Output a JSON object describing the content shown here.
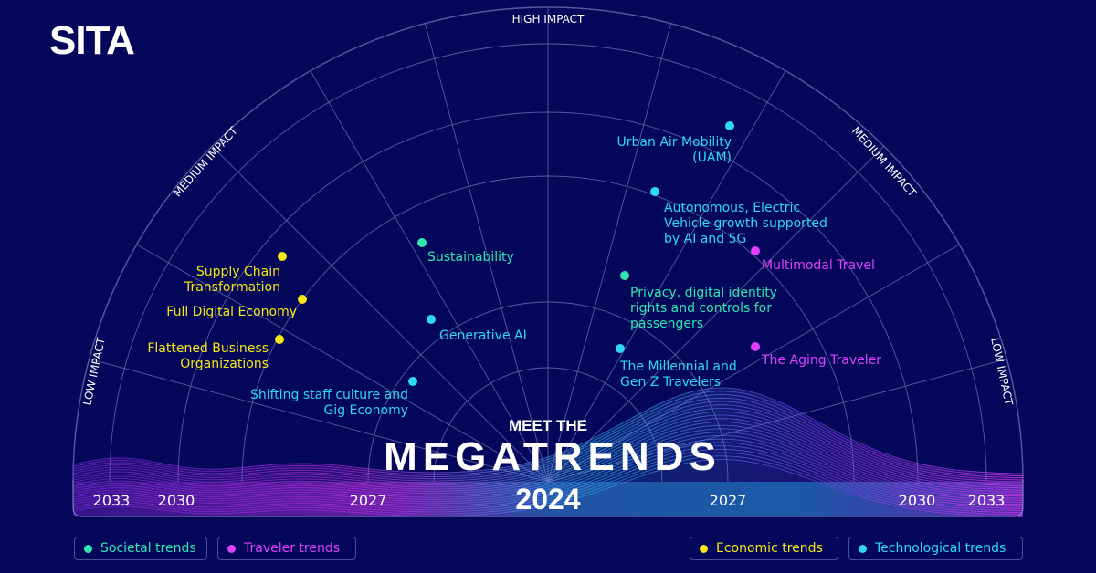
{
  "brand": {
    "logo_text": "SITA"
  },
  "title": {
    "line1": "MEET THE",
    "line2": "MEGATRENDS",
    "year": "2024"
  },
  "impact_labels": {
    "high": "HIGH IMPACT",
    "medium_left": "MEDIUM IMPACT",
    "medium_right": "MEDIUM IMPACT",
    "low_left": "LOW IMPACT",
    "low_right": "LOW IMPACT"
  },
  "year_labels": {
    "left": [
      "2033",
      "2030",
      "2027"
    ],
    "right": [
      "2027",
      "2030",
      "2033"
    ]
  },
  "colors": {
    "background": "#05085a",
    "societal": "#2ee6b0",
    "traveler": "#e040fb",
    "economic": "#f5e616",
    "technological": "#2ed8f0",
    "grid": "#6a6fb0"
  },
  "legend": {
    "societal": "Societal trends",
    "traveler": "Traveler trends",
    "economic": "Economic trends",
    "technological": "Technological trends"
  },
  "trends": [
    {
      "category": "technological",
      "lines": [
        "Urban Air Mobility",
        "(UAM)"
      ]
    },
    {
      "category": "technological",
      "lines": [
        "Autonomous, Electric",
        "Vehicle growth supported",
        "by AI and 5G"
      ]
    },
    {
      "category": "traveler",
      "lines": [
        "Multimodal Travel"
      ]
    },
    {
      "category": "societal",
      "lines": [
        "Privacy, digital identity",
        "rights and controls for",
        "passengers"
      ]
    },
    {
      "category": "technological",
      "lines": [
        "The Millennial and",
        "Gen Z Travelers"
      ]
    },
    {
      "category": "traveler",
      "lines": [
        "The Aging Traveler"
      ]
    },
    {
      "category": "societal",
      "lines": [
        "Sustainability"
      ]
    },
    {
      "category": "technological",
      "lines": [
        "Generative AI"
      ]
    },
    {
      "category": "technological",
      "lines": [
        "Shifting staff culture and",
        "Gig Economy"
      ]
    },
    {
      "category": "economic",
      "lines": [
        "Supply Chain",
        "Transformation"
      ]
    },
    {
      "category": "economic",
      "lines": [
        "Full Digital Economy"
      ]
    },
    {
      "category": "economic",
      "lines": [
        "Flattened Business",
        "Organizations"
      ]
    }
  ]
}
